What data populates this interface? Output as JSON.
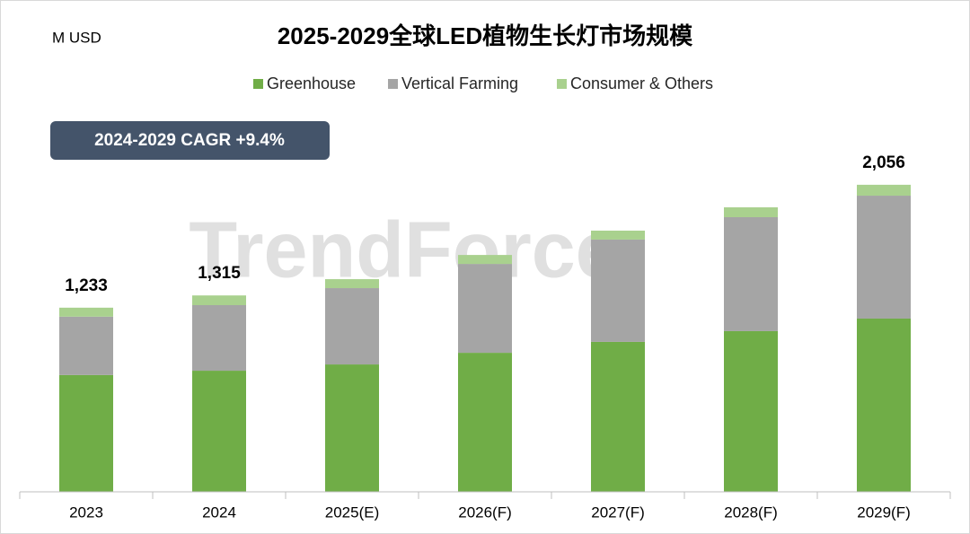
{
  "chart_data": {
    "type": "stacked_bar",
    "title": "2025-2029全球LED植物生长灯市场规模",
    "unit_label": "M USD",
    "annotation": "2024-2029 CAGR +9.4%",
    "watermark": "TrendForce",
    "categories": [
      "2023",
      "2024",
      "2025(E)",
      "2026(F)",
      "2027(F)",
      "2028(F)",
      "2029(F)"
    ],
    "series": [
      {
        "name": "Greenhouse",
        "color": "#70ad47",
        "values": [
          782,
          811,
          853,
          931,
          1004,
          1076,
          1160
        ]
      },
      {
        "name": "Vertical Farming",
        "color": "#a5a5a5",
        "values": [
          391,
          439,
          511,
          595,
          685,
          763,
          823
        ]
      },
      {
        "name": "Consumer & Others",
        "color": "#a9d18e",
        "values": [
          60,
          65,
          60,
          60,
          60,
          66,
          73
        ]
      }
    ],
    "totals": [
      1233,
      1315,
      null,
      null,
      null,
      null,
      2056
    ],
    "total_labels": [
      "1,233",
      "1,315",
      null,
      null,
      null,
      null,
      "2,056"
    ],
    "ylim": [
      0,
      2500
    ]
  }
}
